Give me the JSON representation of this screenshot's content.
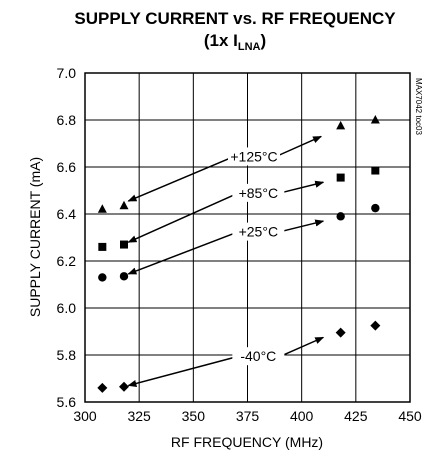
{
  "chart_data": {
    "type": "scatter",
    "title": "SUPPLY CURRENT vs. RF FREQUENCY",
    "subtitle_prefix": "(1x I",
    "subtitle_sub": "LNA",
    "subtitle_suffix": ")",
    "xlabel": "RF FREQUENCY (MHz)",
    "ylabel": "SUPPLY CURRENT (mA)",
    "xlim": [
      300,
      450
    ],
    "ylim": [
      5.6,
      7.0
    ],
    "x_ticks": [
      300,
      325,
      350,
      375,
      400,
      425,
      450
    ],
    "y_ticks": [
      "5.6",
      "5.8",
      "6.0",
      "6.2",
      "6.4",
      "6.6",
      "6.8",
      "7.0"
    ],
    "grid": true,
    "part_number": "MAX7042 toc03",
    "series": [
      {
        "name": "+125°C",
        "marker": "triangle",
        "x": [
          308,
          318,
          418,
          434
        ],
        "y": [
          6.42,
          6.435,
          6.775,
          6.8
        ]
      },
      {
        "name": "+85°C",
        "marker": "square",
        "x": [
          308,
          318,
          418,
          434
        ],
        "y": [
          6.26,
          6.27,
          6.555,
          6.585
        ]
      },
      {
        "name": "+25°C",
        "marker": "circle",
        "x": [
          308,
          318,
          418,
          434
        ],
        "y": [
          6.13,
          6.135,
          6.39,
          6.425
        ]
      },
      {
        "name": "-40°C",
        "marker": "diamond",
        "x": [
          308,
          318,
          418,
          434
        ],
        "y": [
          5.66,
          5.665,
          5.895,
          5.925
        ]
      }
    ],
    "annotations": [
      {
        "text": "+125°C",
        "at": [
          378,
          6.645
        ],
        "arrow_to": [
          [
            409,
            6.73
          ],
          [
            320,
            6.455
          ]
        ]
      },
      {
        "text": "+85°C",
        "at": [
          380,
          6.49
        ],
        "arrow_to": [
          [
            410,
            6.535
          ],
          [
            320,
            6.28
          ]
        ]
      },
      {
        "text": "+25°C",
        "at": [
          380,
          6.325
        ],
        "arrow_to": [
          [
            410,
            6.37
          ],
          [
            320,
            6.145
          ]
        ]
      },
      {
        "text": "-40°C",
        "at": [
          380,
          5.795
        ],
        "arrow_to": [
          [
            410,
            5.875
          ],
          [
            320,
            5.67
          ]
        ]
      }
    ]
  }
}
